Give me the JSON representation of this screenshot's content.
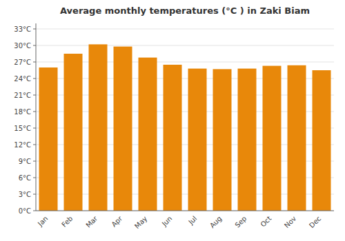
{
  "chart_data": {
    "type": "bar",
    "title": "Average monthly temperatures (°C ) in Zaki Biam",
    "categories": [
      "Jan",
      "Feb",
      "Mar",
      "Apr",
      "May",
      "Jun",
      "Jul",
      "Aug",
      "Sep",
      "Oct",
      "Nov",
      "Dec"
    ],
    "values": [
      26.0,
      28.5,
      30.2,
      29.8,
      27.8,
      26.5,
      25.8,
      25.7,
      25.8,
      26.3,
      26.4,
      25.5
    ],
    "color": "#E8880A",
    "ylim": [
      0,
      34
    ],
    "yticks": [
      {
        "value": 0,
        "label": "0°C"
      },
      {
        "value": 3,
        "label": "3°C"
      },
      {
        "value": 6,
        "label": "6°C"
      },
      {
        "value": 9,
        "label": "9°C"
      },
      {
        "value": 12,
        "label": "12°C"
      },
      {
        "value": 15,
        "label": "15°C"
      },
      {
        "value": 18,
        "label": "18°C"
      },
      {
        "value": 21,
        "label": "21°C"
      },
      {
        "value": 24,
        "label": "24°C"
      },
      {
        "value": 27,
        "label": "27°C"
      },
      {
        "value": 30,
        "label": "30°C"
      },
      {
        "value": 33,
        "label": "33°C"
      }
    ],
    "grid": true
  }
}
